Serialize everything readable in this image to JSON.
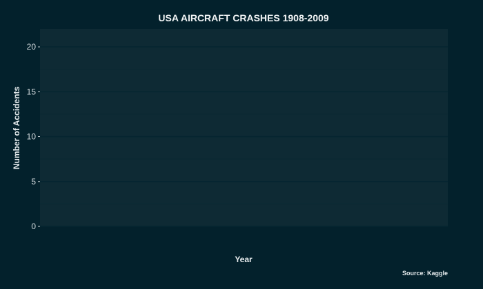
{
  "chart_data": {
    "type": "line",
    "title": "USA AIRCRAFT CRASHES 1908-2009",
    "xlabel": "Year",
    "ylabel": "Number of Accidents",
    "caption": "Source: Kaggle",
    "ylim": [
      0,
      22
    ],
    "yticks": [
      0,
      5,
      10,
      15,
      20
    ],
    "grid": true,
    "series": []
  },
  "colors": {
    "background": "#03212c",
    "panel": "#0e2a34",
    "grid_major": "#052530",
    "grid_minor": "#0a2832",
    "text": "#e7ecee",
    "tick": "#d6dde0"
  }
}
